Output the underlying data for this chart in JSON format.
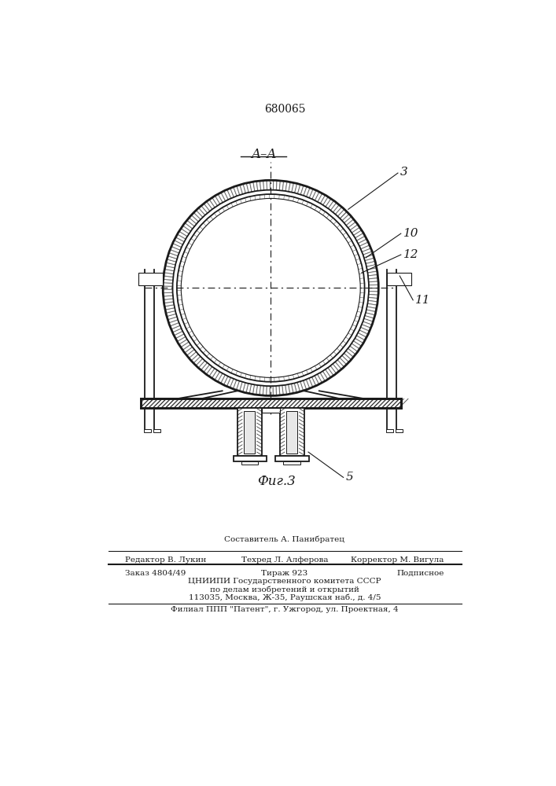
{
  "patent_number": "680065",
  "section_label": "A–A",
  "fig_label": "Фиг.3",
  "label_3": "3",
  "label_10": "10",
  "label_12": "12",
  "label_11": "11",
  "label_5": "5",
  "bg_color": "#ffffff",
  "line_color": "#1a1a1a",
  "footer_line1_center_top": "Составитель А. Панибратец",
  "footer_line1_left": "Редактор В. Лукин",
  "footer_line1_center": "Техред Л. Алферова",
  "footer_line1_right": "Корректор М. Вигула",
  "footer_line2_left": "Заказ 4804/49",
  "footer_line2_center": "Тираж 923",
  "footer_line2_right": "Подписное",
  "footer_line3": "ЦНИИПИ Государственного комитета СССР",
  "footer_line4": "по делам изобретений и открытий",
  "footer_line5": "113035, Москва, Ж-35, Раушская наб., д. 4/5",
  "footer_line6": "Филиал ППП \"Патент\", г. Ужгород, ул. Проектная, 4"
}
